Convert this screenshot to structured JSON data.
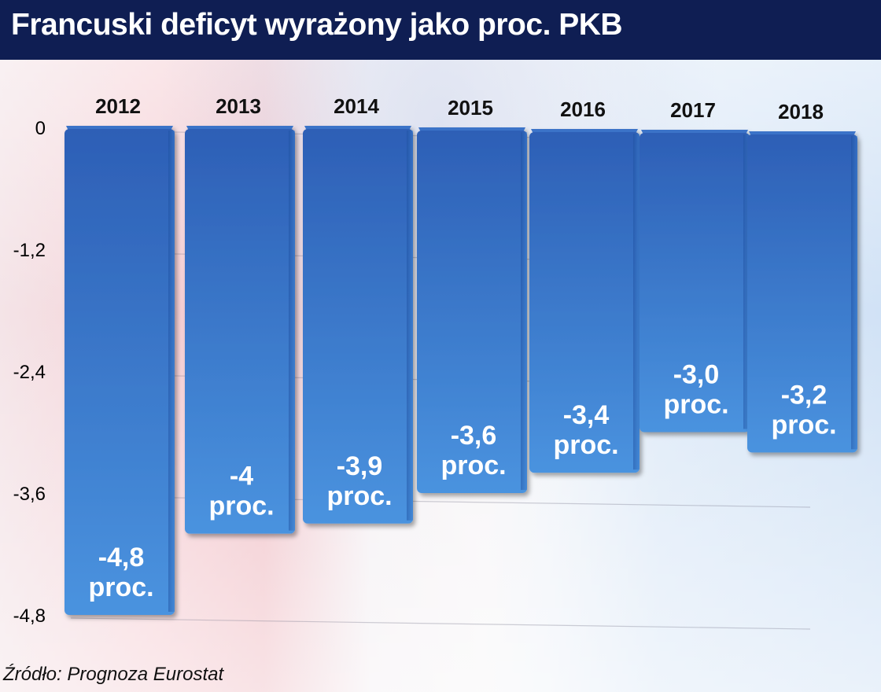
{
  "header": {
    "title": "Francuski deficyt wyrażony jako proc. PKB"
  },
  "footer": {
    "source": "Źródło: Prognoza Eurostat"
  },
  "colors": {
    "header_bg": "#0f1e53",
    "bar_top": "#2d5fb6",
    "bar_bottom": "#4a93df",
    "label": "#ffffff",
    "axis_text": "#000000"
  },
  "chart_data": {
    "type": "bar",
    "title": "Francuski deficyt wyrażony jako proc. PKB",
    "xlabel": "",
    "ylabel": "",
    "categories": [
      "2012",
      "2013",
      "2014",
      "2015",
      "2016",
      "2017",
      "2018"
    ],
    "values": [
      -4.8,
      -4.0,
      -3.9,
      -3.6,
      -3.4,
      -3.0,
      -3.2
    ],
    "data_labels": [
      [
        "-4,8",
        "proc."
      ],
      [
        "-4",
        "proc."
      ],
      [
        "-3,9",
        "proc."
      ],
      [
        "-3,6",
        "proc."
      ],
      [
        "-3,4",
        "proc."
      ],
      [
        "-3,0",
        "proc."
      ],
      [
        "-3,2",
        "proc."
      ]
    ],
    "y_ticks": [
      {
        "value": 0,
        "label": "0"
      },
      {
        "value": -1.2,
        "label": "-1,2"
      },
      {
        "value": -2.4,
        "label": "-2,4"
      },
      {
        "value": -3.6,
        "label": "-3,6"
      },
      {
        "value": -4.8,
        "label": "-4,8"
      }
    ],
    "ylim": [
      -4.8,
      0
    ],
    "grid": true,
    "legend": "none"
  }
}
